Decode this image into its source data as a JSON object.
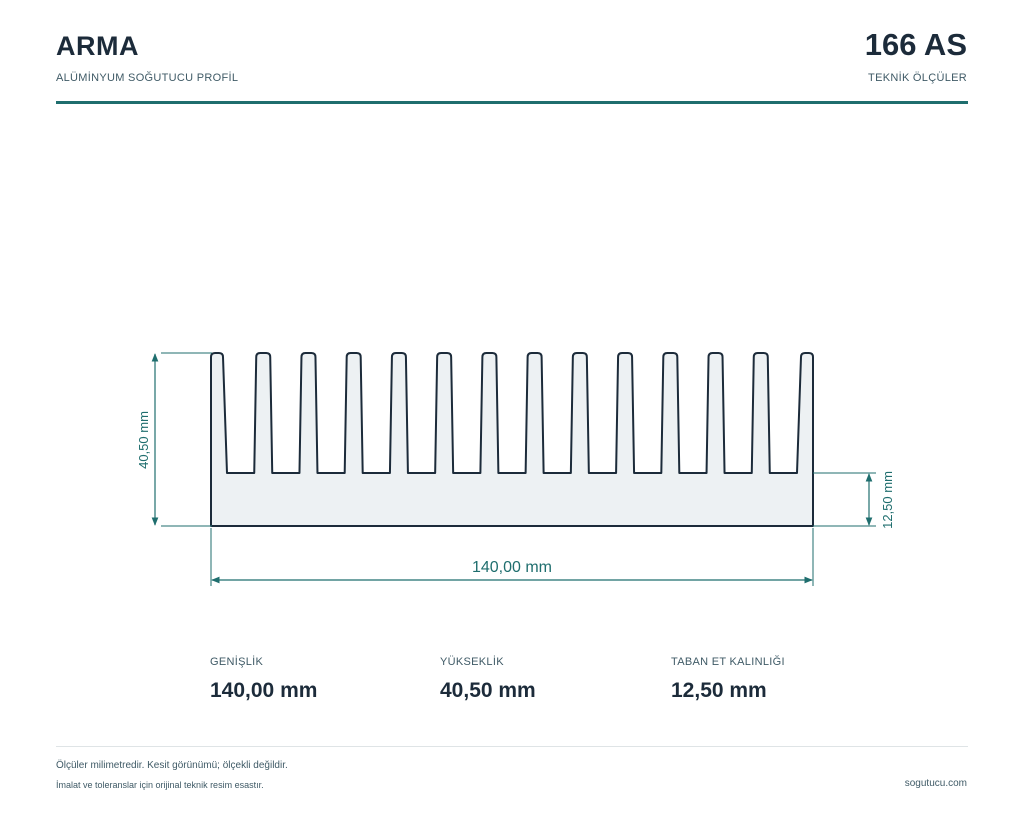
{
  "header": {
    "brand": "ARMA",
    "brand_subtitle": "ALÜMİNYUM SOĞUTUCU PROFİL",
    "product_code": "166 AS",
    "product_subtitle": "TEKNİK ÖLÇÜLER"
  },
  "drawing": {
    "fin_count": 14,
    "width_label": "140,00 mm",
    "height_label": "40,50 mm",
    "base_label": "12,50 mm",
    "line_color": "#1c2b3a",
    "fill_color": "#edf1f3",
    "dimension_color": "#1f6e6e"
  },
  "specs": [
    {
      "label": "GENİŞLİK",
      "value": "140,00 mm"
    },
    {
      "label": "YÜKSEKLİK",
      "value": "40,50 mm"
    },
    {
      "label": "TABAN ET KALINLIĞI",
      "value": "12,50 mm"
    }
  ],
  "footer": {
    "note_1": "Ölçüler milimetredir. Kesit görünümü; ölçekli değildir.",
    "note_2": "İmalat ve toleranslar için orijinal teknik resim esastır.",
    "website": "sogutucu.com"
  }
}
